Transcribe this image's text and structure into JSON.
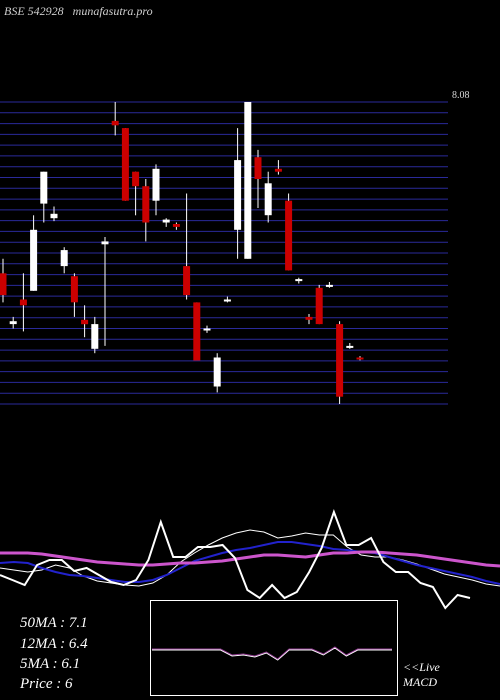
{
  "header": {
    "ticker": "BSE 542928",
    "site": "munafasutra.pro"
  },
  "colors": {
    "background": "#000000",
    "up": "#ffffff",
    "down": "#cc0000",
    "grid": "#2a2a9a",
    "ma_long": "#cc55cc",
    "ma_mid": "#2222cc",
    "ma_short": "#ffffff"
  },
  "chart_data": {
    "type": "candlestick",
    "price_top_label": "8.08",
    "ylim": [
      6.0,
      8.08
    ],
    "candles": [
      {
        "o": 6.9,
        "h": 7.0,
        "l": 6.7,
        "c": 6.75
      },
      {
        "o": 6.55,
        "h": 6.6,
        "l": 6.52,
        "c": 6.57
      },
      {
        "o": 6.72,
        "h": 6.9,
        "l": 6.5,
        "c": 6.68
      },
      {
        "o": 6.78,
        "h": 7.3,
        "l": 6.78,
        "c": 7.2
      },
      {
        "o": 7.38,
        "h": 7.6,
        "l": 7.25,
        "c": 7.6
      },
      {
        "o": 7.28,
        "h": 7.36,
        "l": 7.26,
        "c": 7.31
      },
      {
        "o": 6.95,
        "h": 7.08,
        "l": 6.9,
        "c": 7.06
      },
      {
        "o": 6.88,
        "h": 6.9,
        "l": 6.6,
        "c": 6.7
      },
      {
        "o": 6.58,
        "h": 6.68,
        "l": 6.46,
        "c": 6.55
      },
      {
        "o": 6.38,
        "h": 6.6,
        "l": 6.35,
        "c": 6.55
      },
      {
        "o": 7.1,
        "h": 7.15,
        "l": 6.4,
        "c": 7.12
      },
      {
        "o": 7.95,
        "h": 8.08,
        "l": 7.85,
        "c": 7.92
      },
      {
        "o": 7.9,
        "h": 7.9,
        "l": 7.4,
        "c": 7.4
      },
      {
        "o": 7.6,
        "h": 7.6,
        "l": 7.3,
        "c": 7.5
      },
      {
        "o": 7.5,
        "h": 7.55,
        "l": 7.12,
        "c": 7.25
      },
      {
        "o": 7.4,
        "h": 7.65,
        "l": 7.3,
        "c": 7.62
      },
      {
        "o": 7.25,
        "h": 7.28,
        "l": 7.22,
        "c": 7.27
      },
      {
        "o": 7.24,
        "h": 7.25,
        "l": 7.2,
        "c": 7.22
      },
      {
        "o": 6.95,
        "h": 7.45,
        "l": 6.72,
        "c": 6.75
      },
      {
        "o": 6.7,
        "h": 6.7,
        "l": 6.3,
        "c": 6.3
      },
      {
        "o": 6.52,
        "h": 6.54,
        "l": 6.49,
        "c": 6.52
      },
      {
        "o": 6.12,
        "h": 6.35,
        "l": 6.08,
        "c": 6.32
      },
      {
        "o": 6.72,
        "h": 6.74,
        "l": 6.7,
        "c": 6.72
      },
      {
        "o": 7.2,
        "h": 7.9,
        "l": 7.0,
        "c": 7.68
      },
      {
        "o": 7.0,
        "h": 8.08,
        "l": 7.0,
        "c": 8.08
      },
      {
        "o": 7.7,
        "h": 7.75,
        "l": 7.35,
        "c": 7.55
      },
      {
        "o": 7.3,
        "h": 7.6,
        "l": 7.25,
        "c": 7.52
      },
      {
        "o": 7.62,
        "h": 7.68,
        "l": 7.58,
        "c": 7.6
      },
      {
        "o": 7.4,
        "h": 7.45,
        "l": 6.92,
        "c": 6.92
      },
      {
        "o": 6.85,
        "h": 6.87,
        "l": 6.83,
        "c": 6.86
      },
      {
        "o": 6.6,
        "h": 6.62,
        "l": 6.55,
        "c": 6.58
      },
      {
        "o": 6.8,
        "h": 6.82,
        "l": 6.55,
        "c": 6.55
      },
      {
        "o": 6.82,
        "h": 6.84,
        "l": 6.8,
        "c": 6.82
      },
      {
        "o": 6.55,
        "h": 6.57,
        "l": 6.0,
        "c": 6.05
      },
      {
        "o": 6.4,
        "h": 6.42,
        "l": 6.38,
        "c": 6.4
      },
      {
        "o": 6.32,
        "h": 6.33,
        "l": 6.3,
        "c": 6.31
      }
    ],
    "indicator_lines": {
      "ma_long": [
        553,
        553,
        553,
        554,
        556,
        558,
        560,
        562,
        563,
        564,
        565,
        565,
        564,
        563,
        563,
        562,
        561,
        559,
        557,
        555,
        555,
        556,
        557,
        555,
        553,
        553,
        552,
        552,
        553,
        554,
        555,
        557,
        559,
        561,
        563,
        565,
        566
      ],
      "ma_mid": [
        563,
        562,
        563,
        568,
        572,
        575,
        576,
        578,
        580,
        582,
        582,
        580,
        575,
        568,
        561,
        557,
        553,
        550,
        548,
        545,
        542,
        542,
        544,
        546,
        549,
        550,
        552,
        553,
        557,
        561,
        565,
        568,
        571,
        574,
        577,
        581,
        584
      ],
      "ma_short": [
        568,
        570,
        572,
        570,
        565,
        568,
        576,
        581,
        583,
        585,
        586,
        583,
        575,
        562,
        553,
        545,
        538,
        533,
        530,
        532,
        538,
        536,
        533,
        535,
        535,
        547,
        555,
        557,
        557,
        560,
        564,
        569,
        574,
        577,
        580,
        584,
        586
      ],
      "price": [
        575,
        580,
        585,
        565,
        560,
        560,
        571,
        568,
        575,
        582,
        585,
        580,
        560,
        522,
        557,
        557,
        547,
        547,
        545,
        558,
        590,
        598,
        585,
        598,
        592,
        572,
        548,
        512,
        545,
        545,
        538,
        562,
        572,
        572,
        583,
        587,
        608,
        595,
        598
      ]
    },
    "macd_lines": [
      650,
      650,
      650,
      650,
      650,
      650,
      650,
      656,
      655,
      657,
      653,
      660,
      650,
      650,
      650,
      655,
      648,
      656,
      650,
      650,
      650,
      650
    ]
  },
  "stats": {
    "ma50": "50MA : 7.1",
    "ma12": "12MA : 6.4",
    "ma5": "5MA : 6.1",
    "price": "Price   : 6"
  },
  "macd_label": {
    "line1": "<<Live",
    "line2": "MACD"
  }
}
